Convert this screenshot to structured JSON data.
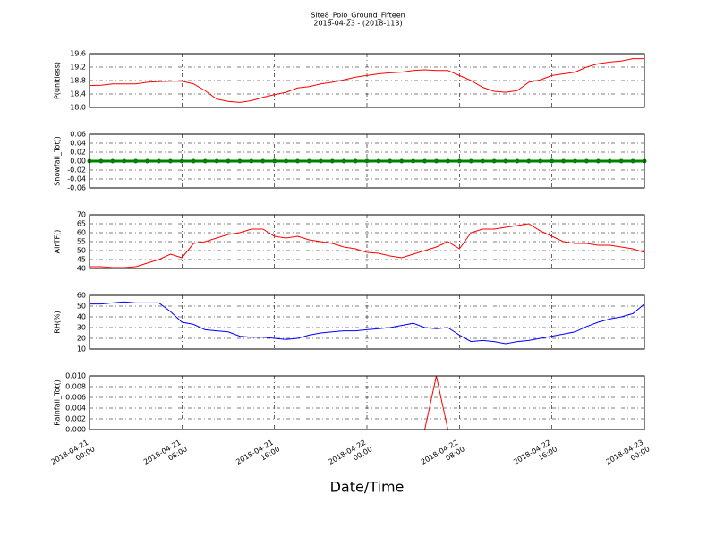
{
  "chart_data": [
    {
      "type": "line",
      "title": "Site8_Polo_Ground_Fifteen",
      "subtitle": "2018-04-23 - (2018-113)",
      "ylabel": "P(unitless)",
      "color": "#ff0000",
      "grid": true,
      "x": [
        "2018-04-21 00:00",
        "2018-04-21 01:00",
        "2018-04-21 02:00",
        "2018-04-21 03:00",
        "2018-04-21 04:00",
        "2018-04-21 05:00",
        "2018-04-21 06:00",
        "2018-04-21 07:00",
        "2018-04-21 08:00",
        "2018-04-21 09:00",
        "2018-04-21 10:00",
        "2018-04-21 11:00",
        "2018-04-21 12:00",
        "2018-04-21 13:00",
        "2018-04-21 14:00",
        "2018-04-21 15:00",
        "2018-04-21 16:00",
        "2018-04-21 17:00",
        "2018-04-21 18:00",
        "2018-04-21 19:00",
        "2018-04-21 20:00",
        "2018-04-21 21:00",
        "2018-04-21 22:00",
        "2018-04-21 23:00",
        "2018-04-22 00:00",
        "2018-04-22 01:00",
        "2018-04-22 02:00",
        "2018-04-22 03:00",
        "2018-04-22 04:00",
        "2018-04-22 05:00",
        "2018-04-22 06:00",
        "2018-04-22 07:00",
        "2018-04-22 08:00",
        "2018-04-22 09:00",
        "2018-04-22 10:00",
        "2018-04-22 11:00",
        "2018-04-22 12:00",
        "2018-04-22 13:00",
        "2018-04-22 14:00",
        "2018-04-22 15:00",
        "2018-04-22 16:00",
        "2018-04-22 17:00",
        "2018-04-22 18:00",
        "2018-04-22 19:00",
        "2018-04-22 20:00",
        "2018-04-22 21:00",
        "2018-04-22 22:00",
        "2018-04-22 23:00",
        "2018-04-23 00:00"
      ],
      "values": [
        18.65,
        18.66,
        18.7,
        18.7,
        18.7,
        18.75,
        18.77,
        18.78,
        18.78,
        18.7,
        18.5,
        18.25,
        18.18,
        18.15,
        18.2,
        18.3,
        18.38,
        18.45,
        18.58,
        18.62,
        18.7,
        18.75,
        18.82,
        18.9,
        18.95,
        19.0,
        19.03,
        19.05,
        19.1,
        19.12,
        19.1,
        19.1,
        18.95,
        18.8,
        18.6,
        18.48,
        18.45,
        18.5,
        18.75,
        18.82,
        18.95,
        19.0,
        19.05,
        19.2,
        19.3,
        19.35,
        19.38,
        19.45,
        19.45
      ],
      "xlim": [
        "2018-04-21 00:00",
        "2018-04-23 00:00"
      ],
      "xticks": [
        "2018-04-21 00:00",
        "2018-04-21 08:00",
        "2018-04-21 16:00",
        "2018-04-22 00:00",
        "2018-04-22 08:00",
        "2018-04-22 16:00",
        "2018-04-23 00:00"
      ],
      "ylim": [
        18.0,
        19.6
      ],
      "yticks": [
        {
          "value": 18.0,
          "label": "18.0"
        },
        {
          "value": 18.4,
          "label": "18.4"
        },
        {
          "value": 18.8,
          "label": "18.8"
        },
        {
          "value": 19.2,
          "label": "19.2"
        },
        {
          "value": 19.6,
          "label": "19.6"
        }
      ]
    },
    {
      "type": "line",
      "ylabel": "Snowfall_Tot()",
      "color": "#008000",
      "marker": true,
      "grid": true,
      "x": [
        "2018-04-21 00:00",
        "2018-04-21 01:00",
        "2018-04-21 02:00",
        "2018-04-21 03:00",
        "2018-04-21 04:00",
        "2018-04-21 05:00",
        "2018-04-21 06:00",
        "2018-04-21 07:00",
        "2018-04-21 08:00",
        "2018-04-21 09:00",
        "2018-04-21 10:00",
        "2018-04-21 11:00",
        "2018-04-21 12:00",
        "2018-04-21 13:00",
        "2018-04-21 14:00",
        "2018-04-21 15:00",
        "2018-04-21 16:00",
        "2018-04-21 17:00",
        "2018-04-21 18:00",
        "2018-04-21 19:00",
        "2018-04-21 20:00",
        "2018-04-21 21:00",
        "2018-04-21 22:00",
        "2018-04-21 23:00",
        "2018-04-22 00:00",
        "2018-04-22 01:00",
        "2018-04-22 02:00",
        "2018-04-22 03:00",
        "2018-04-22 04:00",
        "2018-04-22 05:00",
        "2018-04-22 06:00",
        "2018-04-22 07:00",
        "2018-04-22 08:00",
        "2018-04-22 09:00",
        "2018-04-22 10:00",
        "2018-04-22 11:00",
        "2018-04-22 12:00",
        "2018-04-22 13:00",
        "2018-04-22 14:00",
        "2018-04-22 15:00",
        "2018-04-22 16:00",
        "2018-04-22 17:00",
        "2018-04-22 18:00",
        "2018-04-22 19:00",
        "2018-04-22 20:00",
        "2018-04-22 21:00",
        "2018-04-22 22:00",
        "2018-04-22 23:00",
        "2018-04-23 00:00"
      ],
      "values": [
        0,
        0,
        0,
        0,
        0,
        0,
        0,
        0,
        0,
        0,
        0,
        0,
        0,
        0,
        0,
        0,
        0,
        0,
        0,
        0,
        0,
        0,
        0,
        0,
        0,
        0,
        0,
        0,
        0,
        0,
        0,
        0,
        0,
        0,
        0,
        0,
        0,
        0,
        0,
        0,
        0,
        0,
        0,
        0,
        0,
        0,
        0,
        0,
        0
      ],
      "xlim": [
        "2018-04-21 00:00",
        "2018-04-23 00:00"
      ],
      "xticks": [
        "2018-04-21 00:00",
        "2018-04-21 08:00",
        "2018-04-21 16:00",
        "2018-04-22 00:00",
        "2018-04-22 08:00",
        "2018-04-22 16:00",
        "2018-04-23 00:00"
      ],
      "ylim": [
        -0.06,
        0.06
      ],
      "yticks": [
        {
          "value": -0.06,
          "label": "-0.06"
        },
        {
          "value": -0.04,
          "label": "-0.04"
        },
        {
          "value": -0.02,
          "label": "-0.02"
        },
        {
          "value": 0,
          "label": "0.00"
        },
        {
          "value": 0.02,
          "label": "0.02"
        },
        {
          "value": 0.04,
          "label": "0.04"
        },
        {
          "value": 0.06,
          "label": "0.06"
        }
      ]
    },
    {
      "type": "line",
      "ylabel": "AirTF()",
      "color": "#ff0000",
      "grid": true,
      "x": [
        "2018-04-21 00:00",
        "2018-04-21 01:00",
        "2018-04-21 02:00",
        "2018-04-21 03:00",
        "2018-04-21 04:00",
        "2018-04-21 05:00",
        "2018-04-21 06:00",
        "2018-04-21 07:00",
        "2018-04-21 08:00",
        "2018-04-21 09:00",
        "2018-04-21 10:00",
        "2018-04-21 11:00",
        "2018-04-21 12:00",
        "2018-04-21 13:00",
        "2018-04-21 14:00",
        "2018-04-21 15:00",
        "2018-04-21 16:00",
        "2018-04-21 17:00",
        "2018-04-21 18:00",
        "2018-04-21 19:00",
        "2018-04-21 20:00",
        "2018-04-21 21:00",
        "2018-04-21 22:00",
        "2018-04-21 23:00",
        "2018-04-22 00:00",
        "2018-04-22 01:00",
        "2018-04-22 02:00",
        "2018-04-22 03:00",
        "2018-04-22 04:00",
        "2018-04-22 05:00",
        "2018-04-22 06:00",
        "2018-04-22 07:00",
        "2018-04-22 08:00",
        "2018-04-22 09:00",
        "2018-04-22 10:00",
        "2018-04-22 11:00",
        "2018-04-22 12:00",
        "2018-04-22 13:00",
        "2018-04-22 14:00",
        "2018-04-22 15:00",
        "2018-04-22 16:00",
        "2018-04-22 17:00",
        "2018-04-22 18:00",
        "2018-04-22 19:00",
        "2018-04-22 20:00",
        "2018-04-22 21:00",
        "2018-04-22 22:00",
        "2018-04-22 23:00",
        "2018-04-23 00:00"
      ],
      "values": [
        41,
        41,
        40.5,
        40.5,
        41,
        43,
        45,
        48,
        46,
        54,
        55,
        57,
        59,
        60,
        62,
        62,
        58,
        57,
        58,
        56,
        55,
        54,
        52,
        51,
        49,
        48.5,
        47,
        46,
        48,
        50,
        52,
        55,
        51,
        60,
        62,
        62,
        63,
        64,
        65,
        61,
        58,
        55,
        54,
        54,
        53,
        53,
        52,
        51,
        49
      ],
      "xlim": [
        "2018-04-21 00:00",
        "2018-04-23 00:00"
      ],
      "xticks": [
        "2018-04-21 00:00",
        "2018-04-21 08:00",
        "2018-04-21 16:00",
        "2018-04-22 00:00",
        "2018-04-22 08:00",
        "2018-04-22 16:00",
        "2018-04-23 00:00"
      ],
      "ylim": [
        40,
        70
      ],
      "yticks": [
        40,
        45,
        50,
        55,
        60,
        65,
        70
      ]
    },
    {
      "type": "line",
      "ylabel": "RH(%)",
      "color": "#0000ff",
      "grid": true,
      "x": [
        "2018-04-21 00:00",
        "2018-04-21 01:00",
        "2018-04-21 02:00",
        "2018-04-21 03:00",
        "2018-04-21 04:00",
        "2018-04-21 05:00",
        "2018-04-21 06:00",
        "2018-04-21 07:00",
        "2018-04-21 08:00",
        "2018-04-21 09:00",
        "2018-04-21 10:00",
        "2018-04-21 11:00",
        "2018-04-21 12:00",
        "2018-04-21 13:00",
        "2018-04-21 14:00",
        "2018-04-21 15:00",
        "2018-04-21 16:00",
        "2018-04-21 17:00",
        "2018-04-21 18:00",
        "2018-04-21 19:00",
        "2018-04-21 20:00",
        "2018-04-21 21:00",
        "2018-04-21 22:00",
        "2018-04-21 23:00",
        "2018-04-22 00:00",
        "2018-04-22 01:00",
        "2018-04-22 02:00",
        "2018-04-22 03:00",
        "2018-04-22 04:00",
        "2018-04-22 05:00",
        "2018-04-22 06:00",
        "2018-04-22 07:00",
        "2018-04-22 08:00",
        "2018-04-22 09:00",
        "2018-04-22 10:00",
        "2018-04-22 11:00",
        "2018-04-22 12:00",
        "2018-04-22 13:00",
        "2018-04-22 14:00",
        "2018-04-22 15:00",
        "2018-04-22 16:00",
        "2018-04-22 17:00",
        "2018-04-22 18:00",
        "2018-04-22 19:00",
        "2018-04-22 20:00",
        "2018-04-22 21:00",
        "2018-04-22 22:00",
        "2018-04-22 23:00",
        "2018-04-23 00:00"
      ],
      "values": [
        52,
        52,
        53,
        54,
        53,
        53,
        53,
        45,
        35,
        33,
        28,
        27,
        26,
        22,
        21,
        21,
        20,
        19,
        20,
        23,
        25,
        26,
        27,
        27,
        28,
        29,
        30,
        32,
        34,
        30,
        29,
        30,
        23,
        17,
        18,
        17,
        15,
        17,
        18,
        20,
        22,
        24,
        26,
        31,
        35,
        38,
        40,
        43,
        52
      ],
      "xlim": [
        "2018-04-21 00:00",
        "2018-04-23 00:00"
      ],
      "xticks": [
        "2018-04-21 00:00",
        "2018-04-21 08:00",
        "2018-04-21 16:00",
        "2018-04-22 00:00",
        "2018-04-22 08:00",
        "2018-04-22 16:00",
        "2018-04-23 00:00"
      ],
      "ylim": [
        10,
        60
      ],
      "yticks": [
        10,
        20,
        30,
        40,
        50,
        60
      ]
    },
    {
      "type": "line",
      "ylabel": "Rainfall_Tot()",
      "xlabel": "Date/Time",
      "color": "#ff0000",
      "grid": true,
      "x": [
        "2018-04-21 00:00",
        "2018-04-21 01:00",
        "2018-04-21 02:00",
        "2018-04-21 03:00",
        "2018-04-21 04:00",
        "2018-04-21 05:00",
        "2018-04-21 06:00",
        "2018-04-21 07:00",
        "2018-04-21 08:00",
        "2018-04-21 09:00",
        "2018-04-21 10:00",
        "2018-04-21 11:00",
        "2018-04-21 12:00",
        "2018-04-21 13:00",
        "2018-04-21 14:00",
        "2018-04-21 15:00",
        "2018-04-21 16:00",
        "2018-04-21 17:00",
        "2018-04-21 18:00",
        "2018-04-21 19:00",
        "2018-04-21 20:00",
        "2018-04-21 21:00",
        "2018-04-21 22:00",
        "2018-04-21 23:00",
        "2018-04-22 00:00",
        "2018-04-22 01:00",
        "2018-04-22 02:00",
        "2018-04-22 03:00",
        "2018-04-22 04:00",
        "2018-04-22 05:00",
        "2018-04-22 06:00",
        "2018-04-22 07:00",
        "2018-04-22 08:00",
        "2018-04-22 09:00",
        "2018-04-22 10:00",
        "2018-04-22 11:00",
        "2018-04-22 12:00",
        "2018-04-22 13:00",
        "2018-04-22 14:00",
        "2018-04-22 15:00",
        "2018-04-22 16:00",
        "2018-04-22 17:00",
        "2018-04-22 18:00",
        "2018-04-22 19:00",
        "2018-04-22 20:00",
        "2018-04-22 21:00",
        "2018-04-22 22:00",
        "2018-04-22 23:00",
        "2018-04-23 00:00"
      ],
      "values": [
        0,
        0,
        0,
        0,
        0,
        0,
        0,
        0,
        0,
        0,
        0,
        0,
        0,
        0,
        0,
        0,
        0,
        0,
        0,
        0,
        0,
        0,
        0,
        0,
        0,
        0,
        0,
        0,
        0,
        0,
        0.01,
        0,
        0,
        0,
        0,
        0,
        0,
        0,
        0,
        0,
        0,
        0,
        0,
        0,
        0,
        0,
        0,
        0,
        0
      ],
      "xlim": [
        "2018-04-21 00:00",
        "2018-04-23 00:00"
      ],
      "xticks": [
        "2018-04-21 00:00",
        "2018-04-21 08:00",
        "2018-04-21 16:00",
        "2018-04-22 00:00",
        "2018-04-22 08:00",
        "2018-04-22 16:00",
        "2018-04-23 00:00"
      ],
      "xticklabels": true,
      "ylim": [
        0,
        0.01
      ],
      "yticks": [
        {
          "value": 0,
          "label": "0.000"
        },
        {
          "value": 0.002,
          "label": "0.002"
        },
        {
          "value": 0.004,
          "label": "0.004"
        },
        {
          "value": 0.006,
          "label": "0.006"
        },
        {
          "value": 0.008,
          "label": "0.008"
        },
        {
          "value": 0.01,
          "label": "0.010"
        }
      ]
    }
  ]
}
